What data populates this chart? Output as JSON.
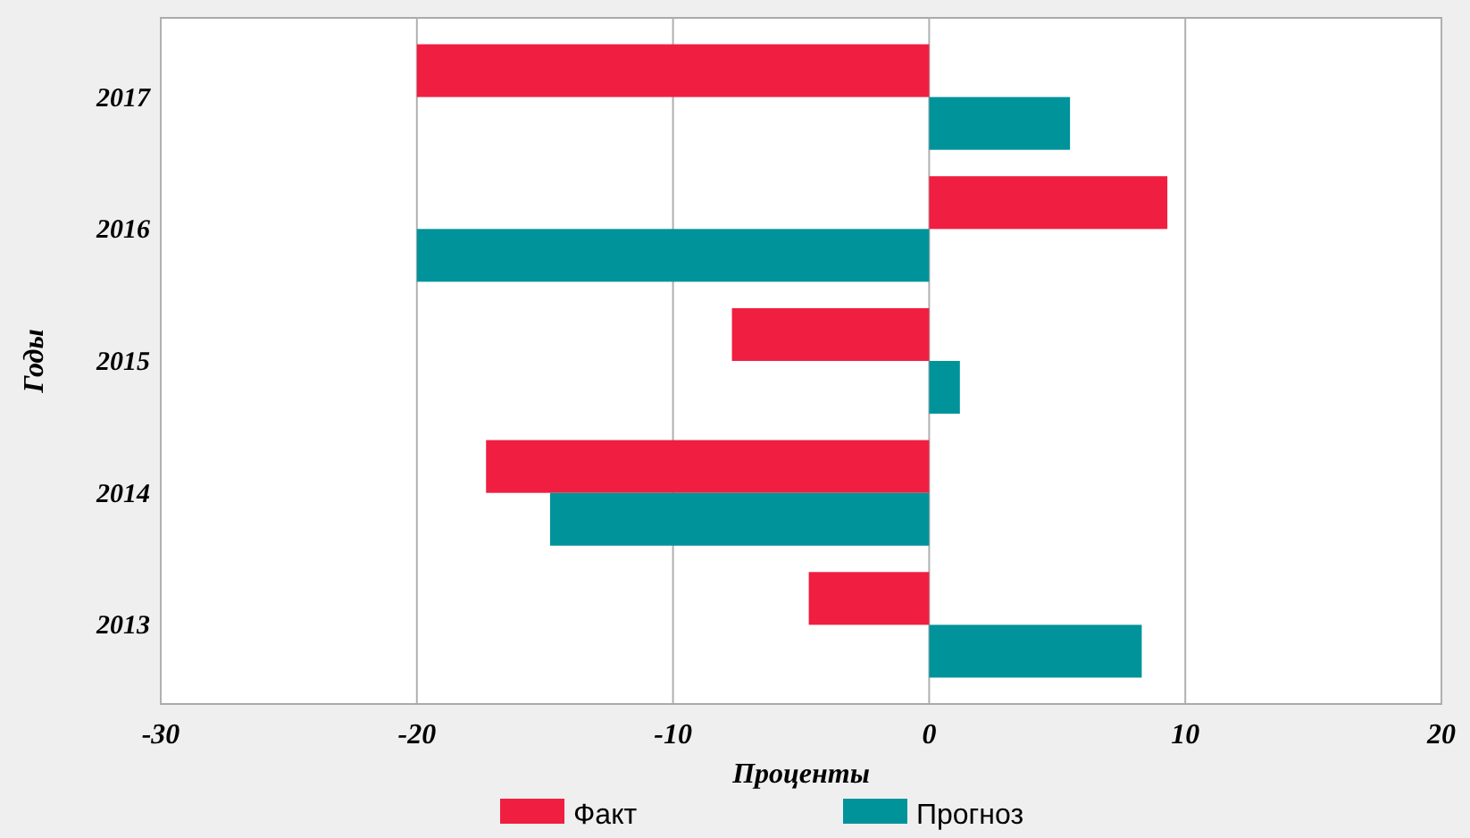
{
  "chart_data": {
    "type": "bar",
    "orientation": "horizontal",
    "xlabel": "Проценты",
    "ylabel": "Годы",
    "categories": [
      "2017",
      "2016",
      "2015",
      "2014",
      "2013"
    ],
    "series": [
      {
        "name": "Факт",
        "color": "#f01e41",
        "values": [
          -20,
          9.3,
          -7.7,
          -17.3,
          -4.7
        ]
      },
      {
        "name": "Прогноз",
        "color": "#00939a",
        "values": [
          5.5,
          -20,
          1.2,
          -14.8,
          8.3
        ]
      }
    ],
    "xlim": [
      -30,
      20
    ],
    "xticks": [
      -30,
      -20,
      -10,
      0,
      10,
      20
    ],
    "grid": "x",
    "legend": "bottom"
  }
}
